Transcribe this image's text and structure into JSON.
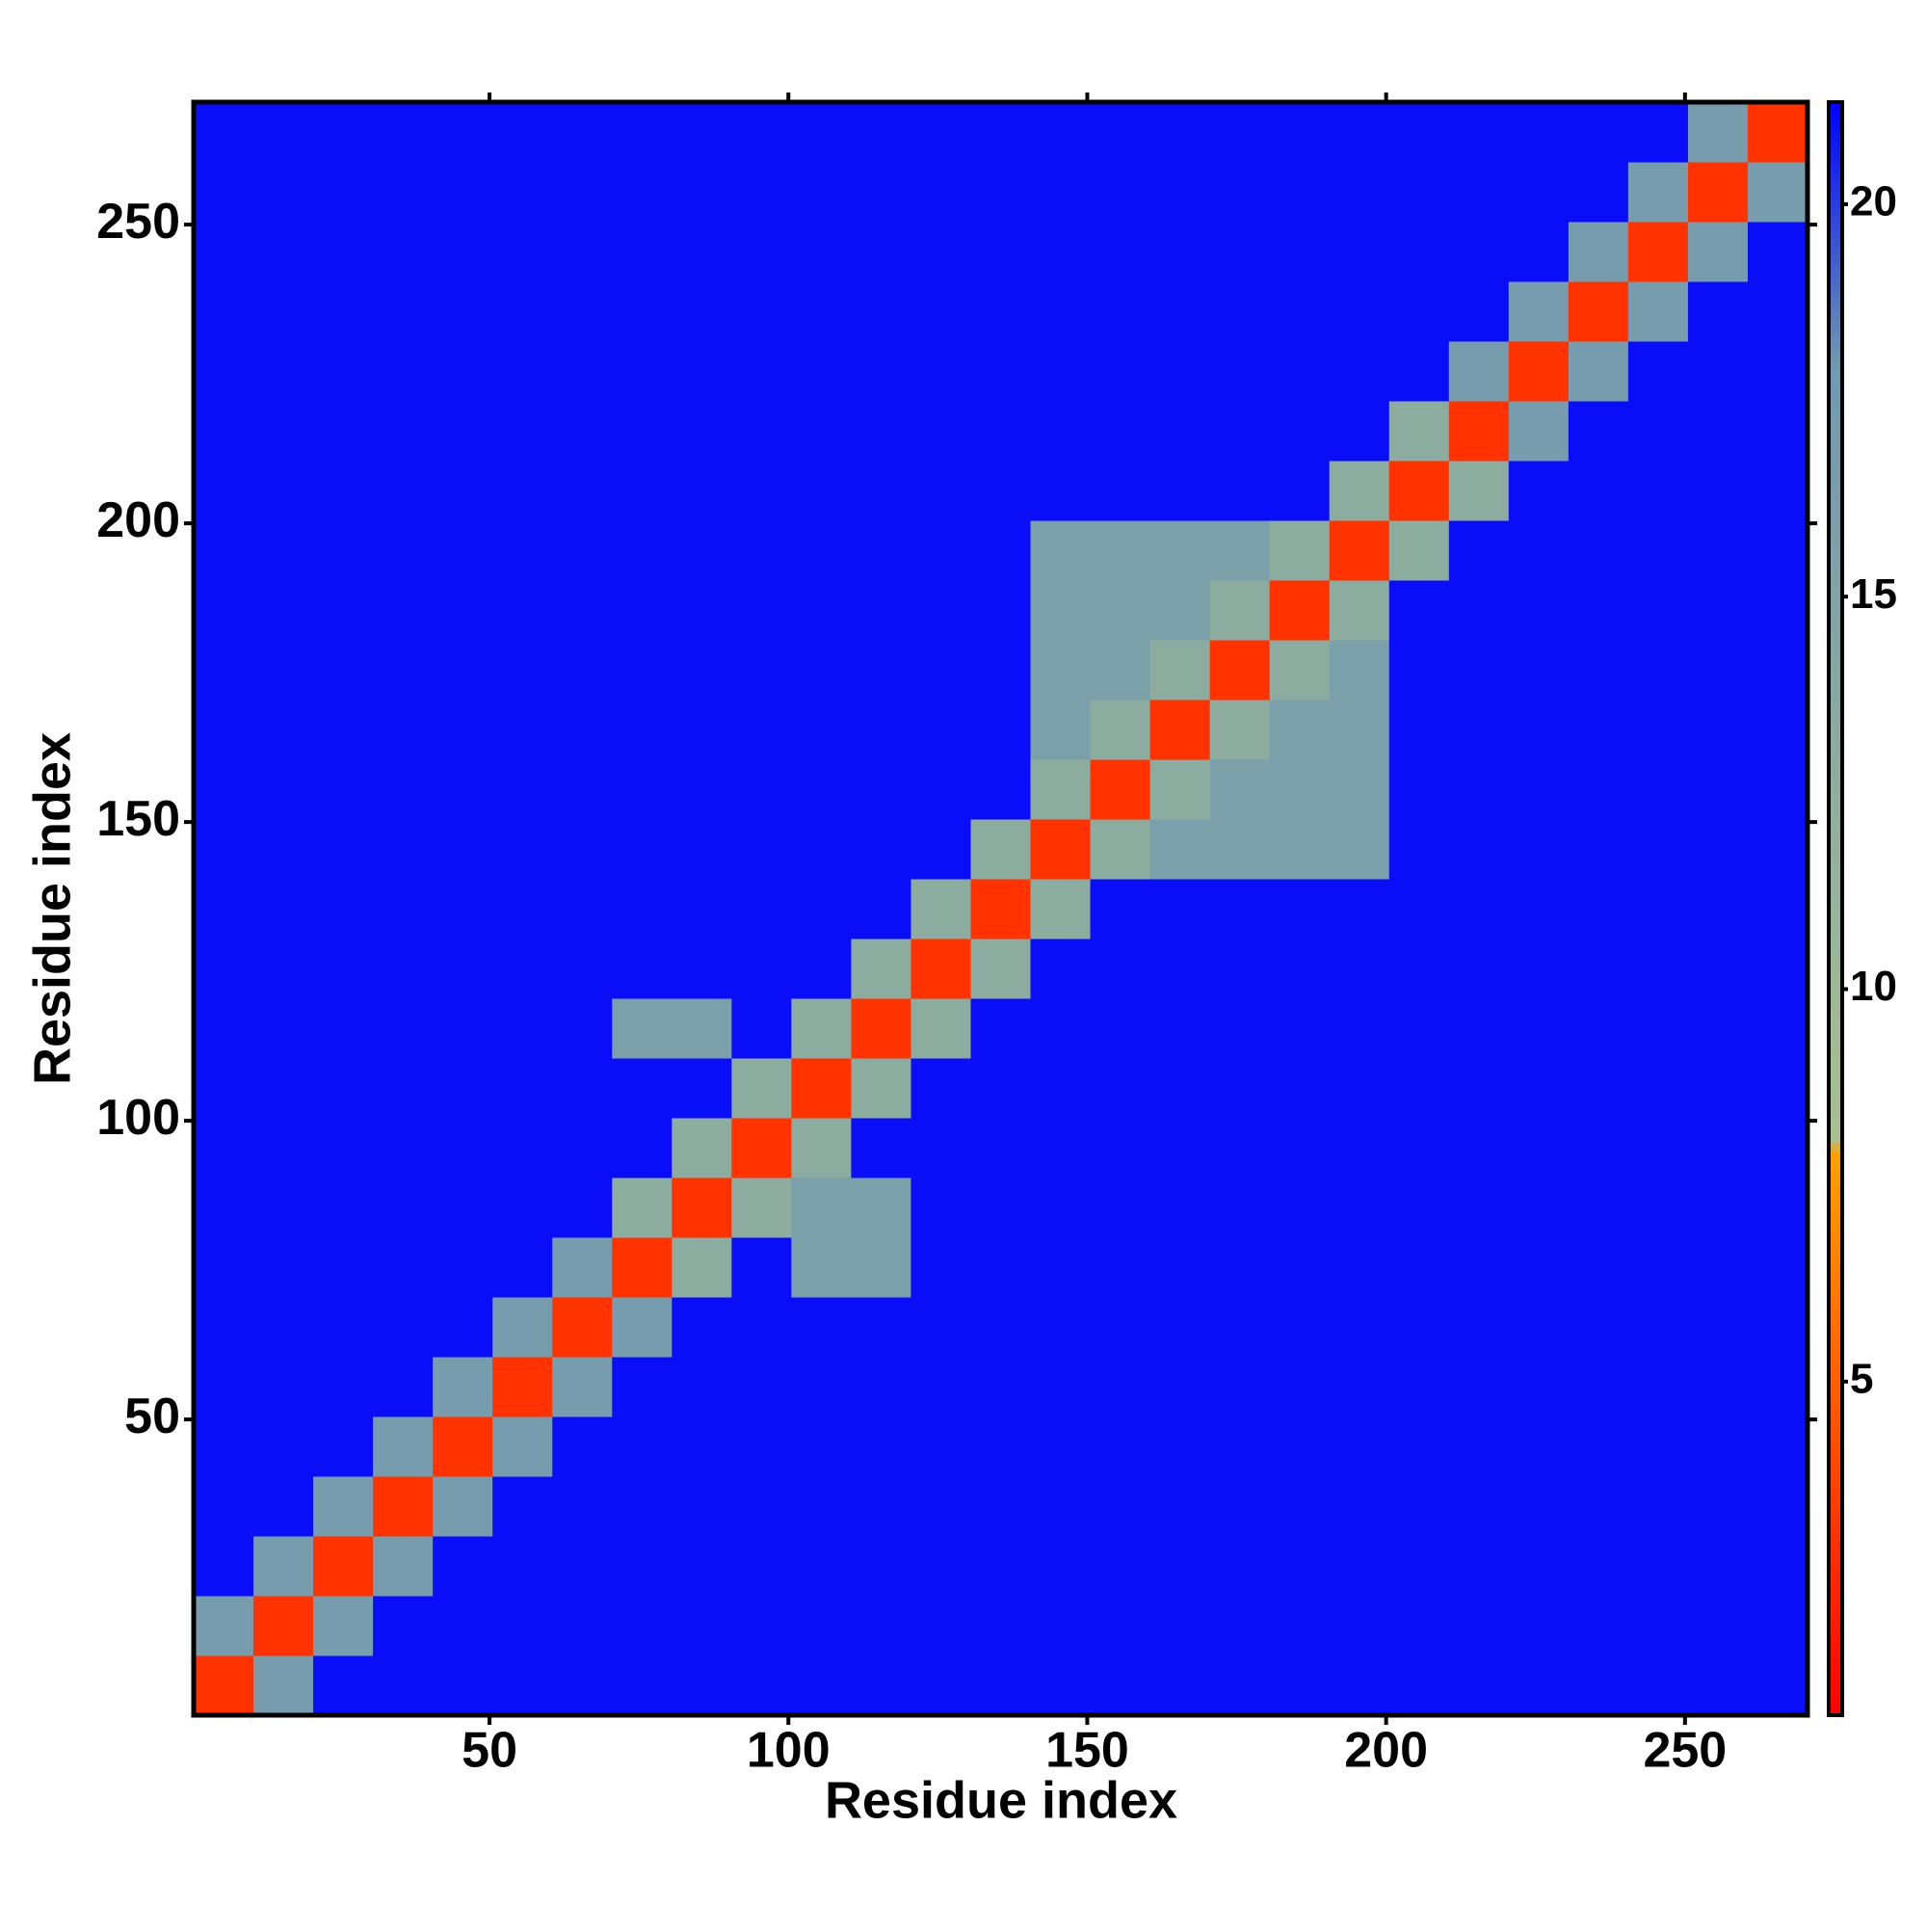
{
  "chart_data": {
    "type": "heatmap",
    "xlabel": "Residue index",
    "ylabel": "Residue index",
    "xlim": [
      0.5,
      270.5
    ],
    "ylim": [
      0.5,
      270.5
    ],
    "xticks": [
      50,
      100,
      150,
      200,
      250
    ],
    "yticks": [
      50,
      100,
      150,
      200,
      250
    ],
    "x_edges": [
      0.5,
      10.5,
      20.5,
      30.5,
      40.5,
      50.5,
      60.5,
      70.5,
      80.5,
      90.5,
      100.5,
      110.5,
      120.5,
      130.5,
      140.5,
      150.5,
      160.5,
      170.5,
      180.5,
      190.5,
      200.5,
      210.5,
      220.5,
      230.5,
      240.5,
      250.5,
      260.5,
      270.5
    ],
    "y_edges": [
      0.5,
      10.5,
      20.5,
      30.5,
      40.5,
      50.5,
      60.5,
      70.5,
      80.5,
      90.5,
      100.5,
      110.5,
      120.5,
      130.5,
      140.5,
      150.5,
      160.5,
      170.5,
      180.5,
      190.5,
      200.5,
      210.5,
      220.5,
      230.5,
      240.5,
      250.5,
      260.5,
      270.5
    ],
    "z": [
      [
        3,
        17,
        21,
        21,
        21,
        21,
        21,
        21,
        21,
        21,
        21,
        21,
        21,
        21,
        21,
        21,
        21,
        21,
        21,
        21,
        21,
        21,
        21,
        21,
        21,
        21,
        21
      ],
      [
        17,
        3,
        17,
        21,
        21,
        21,
        21,
        21,
        21,
        21,
        21,
        21,
        21,
        21,
        21,
        21,
        21,
        21,
        21,
        21,
        21,
        21,
        21,
        21,
        21,
        21,
        21
      ],
      [
        21,
        17,
        3,
        17,
        21,
        21,
        21,
        21,
        21,
        21,
        21,
        21,
        21,
        21,
        21,
        21,
        21,
        21,
        21,
        21,
        21,
        21,
        21,
        21,
        21,
        21,
        21
      ],
      [
        21,
        21,
        17,
        3,
        17,
        21,
        21,
        21,
        21,
        21,
        21,
        21,
        21,
        21,
        21,
        21,
        21,
        21,
        21,
        21,
        21,
        21,
        21,
        21,
        21,
        21,
        21
      ],
      [
        21,
        21,
        21,
        17,
        3,
        17,
        21,
        21,
        21,
        21,
        21,
        21,
        21,
        21,
        21,
        21,
        21,
        21,
        21,
        21,
        21,
        21,
        21,
        21,
        21,
        21,
        21
      ],
      [
        21,
        21,
        21,
        21,
        17,
        3,
        17,
        21,
        21,
        21,
        21,
        21,
        21,
        21,
        21,
        21,
        21,
        21,
        21,
        21,
        21,
        21,
        21,
        21,
        21,
        21,
        21
      ],
      [
        21,
        21,
        21,
        21,
        21,
        17,
        3,
        17,
        21,
        21,
        21,
        21,
        21,
        21,
        21,
        21,
        21,
        21,
        21,
        21,
        21,
        21,
        21,
        21,
        21,
        21,
        21
      ],
      [
        21,
        21,
        21,
        21,
        21,
        21,
        17,
        3,
        13,
        21,
        16,
        16,
        21,
        21,
        21,
        21,
        21,
        21,
        21,
        21,
        21,
        21,
        21,
        21,
        21,
        21,
        21
      ],
      [
        21,
        21,
        21,
        21,
        21,
        21,
        21,
        13,
        3,
        13,
        16,
        16,
        21,
        21,
        21,
        21,
        21,
        21,
        21,
        21,
        21,
        21,
        21,
        21,
        21,
        21,
        21
      ],
      [
        21,
        21,
        21,
        21,
        21,
        21,
        21,
        21,
        13,
        3,
        13,
        21,
        21,
        21,
        21,
        21,
        21,
        21,
        21,
        21,
        21,
        21,
        21,
        21,
        21,
        21,
        21
      ],
      [
        21,
        21,
        21,
        21,
        21,
        21,
        21,
        21,
        21,
        13,
        3,
        13,
        21,
        21,
        21,
        21,
        21,
        21,
        21,
        21,
        21,
        21,
        21,
        21,
        21,
        21,
        21
      ],
      [
        21,
        21,
        21,
        21,
        21,
        21,
        21,
        16,
        16,
        21,
        13,
        3,
        13,
        21,
        21,
        21,
        21,
        21,
        21,
        21,
        21,
        21,
        21,
        21,
        21,
        21,
        21
      ],
      [
        21,
        21,
        21,
        21,
        21,
        21,
        21,
        21,
        21,
        21,
        21,
        13,
        3,
        13,
        21,
        21,
        21,
        21,
        21,
        21,
        21,
        21,
        21,
        21,
        21,
        21,
        21
      ],
      [
        21,
        21,
        21,
        21,
        21,
        21,
        21,
        21,
        21,
        21,
        21,
        21,
        13,
        3,
        13,
        21,
        21,
        21,
        21,
        21,
        21,
        21,
        21,
        21,
        21,
        21,
        21
      ],
      [
        21,
        21,
        21,
        21,
        21,
        21,
        21,
        21,
        21,
        21,
        21,
        21,
        21,
        13,
        3,
        13,
        16,
        16,
        16,
        16,
        21,
        21,
        21,
        21,
        21,
        21,
        21
      ],
      [
        21,
        21,
        21,
        21,
        21,
        21,
        21,
        21,
        21,
        21,
        21,
        21,
        21,
        21,
        13,
        3,
        13,
        16,
        16,
        16,
        21,
        21,
        21,
        21,
        21,
        21,
        21
      ],
      [
        21,
        21,
        21,
        21,
        21,
        21,
        21,
        21,
        21,
        21,
        21,
        21,
        21,
        21,
        16,
        13,
        3,
        13,
        16,
        16,
        21,
        21,
        21,
        21,
        21,
        21,
        21
      ],
      [
        21,
        21,
        21,
        21,
        21,
        21,
        21,
        21,
        21,
        21,
        21,
        21,
        21,
        21,
        16,
        16,
        13,
        3,
        13,
        16,
        21,
        21,
        21,
        21,
        21,
        21,
        21
      ],
      [
        21,
        21,
        21,
        21,
        21,
        21,
        21,
        21,
        21,
        21,
        21,
        21,
        21,
        21,
        16,
        16,
        16,
        13,
        3,
        13,
        21,
        21,
        21,
        21,
        21,
        21,
        21
      ],
      [
        21,
        21,
        21,
        21,
        21,
        21,
        21,
        21,
        21,
        21,
        21,
        21,
        21,
        21,
        16,
        16,
        16,
        16,
        13,
        3,
        13,
        21,
        21,
        21,
        21,
        21,
        21
      ],
      [
        21,
        21,
        21,
        21,
        21,
        21,
        21,
        21,
        21,
        21,
        21,
        21,
        21,
        21,
        21,
        21,
        21,
        21,
        21,
        13,
        3,
        13,
        21,
        21,
        21,
        21,
        21
      ],
      [
        21,
        21,
        21,
        21,
        21,
        21,
        21,
        21,
        21,
        21,
        21,
        21,
        21,
        21,
        21,
        21,
        21,
        21,
        21,
        21,
        13,
        3,
        17,
        21,
        21,
        21,
        21
      ],
      [
        21,
        21,
        21,
        21,
        21,
        21,
        21,
        21,
        21,
        21,
        21,
        21,
        21,
        21,
        21,
        21,
        21,
        21,
        21,
        21,
        21,
        17,
        3,
        17,
        21,
        21,
        21
      ],
      [
        21,
        21,
        21,
        21,
        21,
        21,
        21,
        21,
        21,
        21,
        21,
        21,
        21,
        21,
        21,
        21,
        21,
        21,
        21,
        21,
        21,
        21,
        17,
        3,
        17,
        21,
        21
      ],
      [
        21,
        21,
        21,
        21,
        21,
        21,
        21,
        21,
        21,
        21,
        21,
        21,
        21,
        21,
        21,
        21,
        21,
        21,
        21,
        21,
        21,
        21,
        21,
        17,
        3,
        17,
        21
      ],
      [
        21,
        21,
        21,
        21,
        21,
        21,
        21,
        21,
        21,
        21,
        21,
        21,
        21,
        21,
        21,
        21,
        21,
        21,
        21,
        21,
        21,
        21,
        21,
        21,
        17,
        3,
        17
      ],
      [
        21,
        21,
        21,
        21,
        21,
        21,
        21,
        21,
        21,
        21,
        21,
        21,
        21,
        21,
        21,
        21,
        21,
        21,
        21,
        21,
        21,
        21,
        21,
        21,
        21,
        17,
        3
      ]
    ],
    "zlim": [
      0.75,
      21.3
    ],
    "zticks": [
      5,
      10,
      15,
      20
    ],
    "colorscale": [
      [
        0.75,
        "#ff0000"
      ],
      [
        7.9,
        "#ffa000"
      ],
      [
        8.1,
        "#a8c090"
      ],
      [
        18,
        "#7098b0"
      ],
      [
        21.3,
        "#0000ff"
      ]
    ]
  }
}
